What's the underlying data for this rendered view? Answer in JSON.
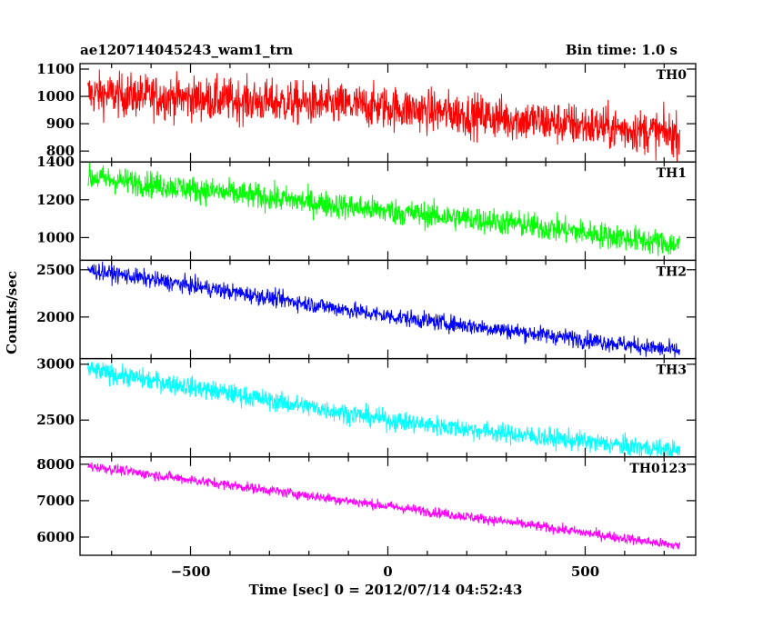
{
  "chart_data": {
    "type": "line",
    "title_left": "ae120714045243_wam1_trn",
    "title_right": "Bin time: 1.0 s",
    "xlabel": "Time [sec] 0 = 2012/07/14 04:52:43",
    "ylabel": "Counts/sec",
    "xlim": [
      -780,
      780
    ],
    "x_ticks": [
      -500,
      0,
      500
    ],
    "x_tick_labels": [
      "−500",
      "0",
      "500"
    ],
    "grid": false,
    "panels": [
      {
        "name": "TH0",
        "color": "#ff0000",
        "ylim": [
          760,
          1120
        ],
        "y_ticks": [
          800,
          900,
          1000,
          1100
        ],
        "y_tick_labels": [
          "800",
          "900",
          "1000",
          "1100"
        ],
        "trend": [
          [
            -760,
            1010
          ],
          [
            0,
            960
          ],
          [
            300,
            920
          ],
          [
            740,
            860
          ]
        ],
        "noise": 40,
        "x_range": [
          -760,
          740
        ]
      },
      {
        "name": "TH1",
        "color": "#00ff00",
        "ylim": [
          880,
          1400
        ],
        "y_ticks": [
          1000,
          1200,
          1400
        ],
        "y_tick_labels": [
          "1000",
          "1200",
          "1400"
        ],
        "trend": [
          [
            -760,
            1320
          ],
          [
            0,
            1140
          ],
          [
            300,
            1080
          ],
          [
            740,
            960
          ]
        ],
        "noise": 35,
        "x_range": [
          -760,
          740
        ]
      },
      {
        "name": "TH2",
        "color": "#0000ff",
        "ylim": [
          1560,
          2600
        ],
        "y_ticks": [
          2000,
          2500
        ],
        "y_tick_labels": [
          "2000",
          "2500"
        ],
        "trend": [
          [
            -760,
            2500
          ],
          [
            0,
            2010
          ],
          [
            300,
            1860
          ],
          [
            740,
            1640
          ]
        ],
        "noise": 45,
        "x_range": [
          -760,
          740
        ]
      },
      {
        "name": "TH3",
        "color": "#00ffff",
        "ylim": [
          2170,
          3050
        ],
        "y_ticks": [
          2500,
          3000
        ],
        "y_tick_labels": [
          "2500",
          "3000"
        ],
        "trend": [
          [
            -760,
            2950
          ],
          [
            0,
            2500
          ],
          [
            300,
            2380
          ],
          [
            740,
            2220
          ]
        ],
        "noise": 45,
        "x_range": [
          -760,
          740
        ]
      },
      {
        "name": "TH0123",
        "color": "#ff00ff",
        "ylim": [
          5500,
          8200
        ],
        "y_ticks": [
          6000,
          7000,
          8000
        ],
        "y_tick_labels": [
          "6000",
          "7000",
          "8000"
        ],
        "trend": [
          [
            -760,
            7950
          ],
          [
            0,
            6850
          ],
          [
            300,
            6420
          ],
          [
            740,
            5750
          ]
        ],
        "noise": 70,
        "x_range": [
          -760,
          740
        ]
      }
    ]
  }
}
